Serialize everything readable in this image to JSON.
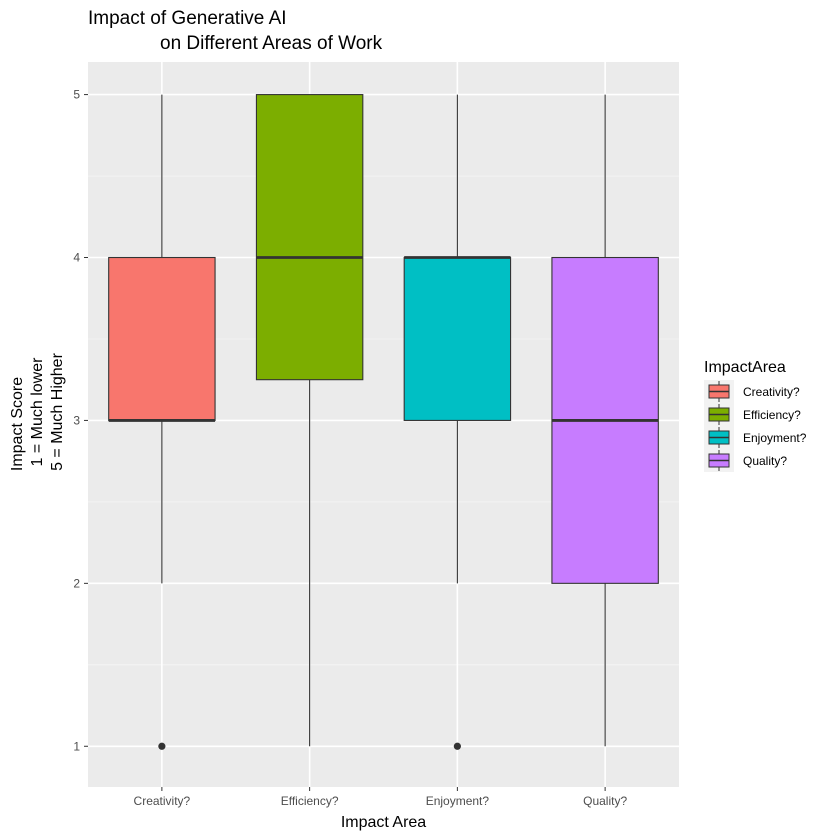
{
  "chart_data": {
    "type": "boxplot",
    "title": [
      "Impact of Generative AI",
      "on Different Areas of Work"
    ],
    "xlabel": "Impact Area",
    "ylabel": [
      "Impact Score",
      "1 = Much lower",
      "5 = Much Higher"
    ],
    "ylim": [
      0.75,
      5.2
    ],
    "yticks": [
      1,
      2,
      3,
      4,
      5
    ],
    "categories": [
      "Creativity?",
      "Efficiency?",
      "Enjoyment?",
      "Quality?"
    ],
    "legend": {
      "title": "ImpactArea",
      "placement": "right"
    },
    "grid": true,
    "boxes": [
      {
        "name": "Creativity?",
        "lower_whisker": 2,
        "q1": 3,
        "median": 3,
        "q3": 4,
        "upper_whisker": 5,
        "outliers": [
          1
        ],
        "color": "#F8766D"
      },
      {
        "name": "Efficiency?",
        "lower_whisker": 1,
        "q1": 3.25,
        "median": 4,
        "q3": 5,
        "upper_whisker": 5,
        "outliers": [],
        "color": "#7CAE00"
      },
      {
        "name": "Enjoyment?",
        "lower_whisker": 2,
        "q1": 3,
        "median": 4,
        "q3": 4,
        "upper_whisker": 5,
        "outliers": [
          1
        ],
        "color": "#00BFC4"
      },
      {
        "name": "Quality?",
        "lower_whisker": 1,
        "q1": 2,
        "median": 3,
        "q3": 4,
        "upper_whisker": 5,
        "outliers": [],
        "color": "#C77CFF"
      }
    ]
  }
}
